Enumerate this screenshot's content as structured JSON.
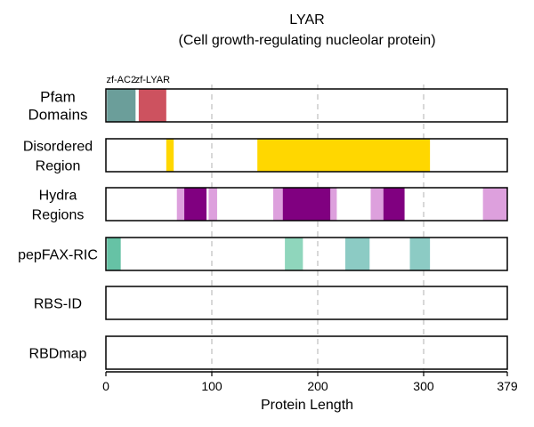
{
  "chart_data": {
    "type": "bar",
    "title": "LYAR",
    "subtitle": "(Cell growth-regulating nucleolar protein)",
    "xlabel": "Protein Length",
    "xlim": [
      0,
      379
    ],
    "xticks": [
      0,
      100,
      200,
      300,
      379
    ],
    "grid": "vertical dashed at 100, 200, 300",
    "tracks": [
      {
        "label_lines": [
          "Pfam",
          "Domains"
        ],
        "segments": [
          {
            "start": 1,
            "end": 28,
            "color": "#6b9e9a",
            "label": "zf-AC2"
          },
          {
            "start": 31,
            "end": 57,
            "color": "#cd525f",
            "label": "zf-LYAR"
          }
        ]
      },
      {
        "label_lines": [
          "Disordered",
          "Region"
        ],
        "segments": [
          {
            "start": 57,
            "end": 64,
            "color": "#ffd700"
          },
          {
            "start": 143,
            "end": 306,
            "color": "#ffd700"
          }
        ]
      },
      {
        "label_lines": [
          "Hydra",
          "Regions"
        ],
        "segments": [
          {
            "start": 67,
            "end": 74,
            "color": "#dda0dd"
          },
          {
            "start": 74,
            "end": 95,
            "color": "#800080"
          },
          {
            "start": 97,
            "end": 105,
            "color": "#dda0dd"
          },
          {
            "start": 158,
            "end": 167,
            "color": "#dda0dd"
          },
          {
            "start": 167,
            "end": 212,
            "color": "#800080"
          },
          {
            "start": 212,
            "end": 218,
            "color": "#dda0dd"
          },
          {
            "start": 250,
            "end": 262,
            "color": "#dda0dd"
          },
          {
            "start": 262,
            "end": 282,
            "color": "#800080"
          },
          {
            "start": 356,
            "end": 379,
            "color": "#dda0dd"
          }
        ]
      },
      {
        "label_lines": [
          "pepFAX-RIC"
        ],
        "segments": [
          {
            "start": 1,
            "end": 14,
            "color": "#66c2a5"
          },
          {
            "start": 169,
            "end": 186,
            "color": "#8fd6bc"
          },
          {
            "start": 226,
            "end": 249,
            "color": "#8ccbc4"
          },
          {
            "start": 287,
            "end": 306,
            "color": "#8ccbc4"
          }
        ]
      },
      {
        "label_lines": [
          "RBS-ID"
        ],
        "segments": []
      },
      {
        "label_lines": [
          "RBDmap"
        ],
        "segments": []
      }
    ]
  }
}
